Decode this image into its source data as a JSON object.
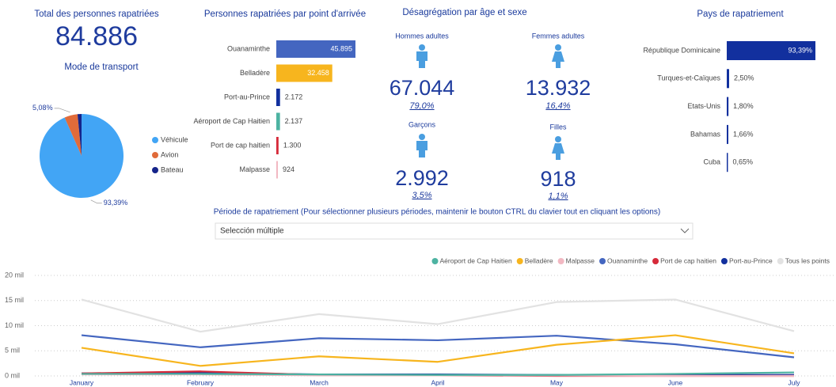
{
  "kpi": {
    "title": "Total des personnes rapatriées",
    "value": "84.886"
  },
  "demographics": {
    "title": "Désagrégation par âge et sexe",
    "groups": [
      {
        "label": "Hommes adultes",
        "value": "67.044",
        "share": "79,0%"
      },
      {
        "label": "Femmes adultes",
        "value": "13.932",
        "share": "16,4%"
      },
      {
        "label": "Garçons",
        "value": "2.992",
        "share": "3,5%"
      },
      {
        "label": "Filles",
        "value": "918",
        "share": "1,1%"
      }
    ]
  },
  "filter": {
    "label": "Période de rapatriement (Pour sélectionner plusieurs périodes, maintenir le bouton CTRL du clavier tout en cliquant les options)",
    "value": "Selección múltiple"
  },
  "chart_data": [
    {
      "type": "pie",
      "title": "Mode de transport",
      "categories": [
        "Véhicule",
        "Avion",
        "Bateau"
      ],
      "values": [
        93.39,
        5.08,
        1.53
      ],
      "value_labels": [
        "93,39%",
        "5,08%",
        null
      ],
      "colors": [
        "#42a5f5",
        "#e06b3a",
        "#15248a"
      ],
      "legend": "right"
    },
    {
      "type": "hbar",
      "title": "Personnes rapatriées par point d'arrivée",
      "categories": [
        "Ouanaminthe",
        "Belladère",
        "Port-au-Prince",
        "Aéroport de Cap Haitien",
        "Port de cap haitien",
        "Malpasse"
      ],
      "values": [
        45895,
        32458,
        2172,
        2137,
        1300,
        924
      ],
      "value_labels": [
        "45.895",
        "32.458",
        "2.172",
        "2.137",
        "1.300",
        "924"
      ],
      "colors": [
        "#4466c0",
        "#f7b51e",
        "#12309e",
        "#4db3a2",
        "#d62a3a",
        "#f2b8c2"
      ]
    },
    {
      "type": "hbar",
      "title": "Pays de rapatriement",
      "categories": [
        "République Dominicaine",
        "Turques-et-Caïques",
        "Etats-Unis",
        "Bahamas",
        "Cuba"
      ],
      "values": [
        93.39,
        2.5,
        1.8,
        1.66,
        0.65
      ],
      "value_labels": [
        "93,39%",
        "2,50%",
        "1,80%",
        "1,66%",
        "0,65%"
      ],
      "colors": [
        "#12309e",
        "#12309e",
        "#12309e",
        "#12309e",
        "#12309e"
      ]
    },
    {
      "type": "line",
      "categories": [
        "January",
        "February",
        "March",
        "April",
        "May",
        "June",
        "July"
      ],
      "series": [
        {
          "name": "Aéroport de Cap Haitien",
          "color": "#4db3a2",
          "values": [
            400,
            400,
            300,
            200,
            200,
            400,
            700
          ]
        },
        {
          "name": "Belladère",
          "color": "#f7b51e",
          "values": [
            5600,
            2000,
            3900,
            2800,
            6200,
            8100,
            4500
          ]
        },
        {
          "name": "Malpasse",
          "color": "#f2b8c2",
          "values": [
            300,
            300,
            100,
            100,
            100,
            0,
            0
          ]
        },
        {
          "name": "Ouanaminthe",
          "color": "#4466c0",
          "values": [
            8100,
            5700,
            7500,
            7100,
            8000,
            6300,
            3700
          ]
        },
        {
          "name": "Port de cap haitien",
          "color": "#d62a3a",
          "values": [
            500,
            900,
            200,
            100,
            0,
            0,
            0
          ]
        },
        {
          "name": "Port-au-Prince",
          "color": "#12309e",
          "values": [
            500,
            600,
            300,
            300,
            200,
            200,
            200
          ]
        },
        {
          "name": "Tous les points",
          "color": "#e2e2e2",
          "values": [
            15200,
            8800,
            12300,
            10300,
            14700,
            15200,
            8900
          ]
        }
      ],
      "ylim": [
        0,
        20000
      ],
      "yticks": [
        {
          "value": 0,
          "label": "0 mil"
        },
        {
          "value": 5000,
          "label": "5 mil"
        },
        {
          "value": 10000,
          "label": "10 mil"
        },
        {
          "value": 15000,
          "label": "15 mil"
        },
        {
          "value": 20000,
          "label": "20 mil"
        }
      ],
      "grid": true,
      "legend": "top-right"
    }
  ]
}
